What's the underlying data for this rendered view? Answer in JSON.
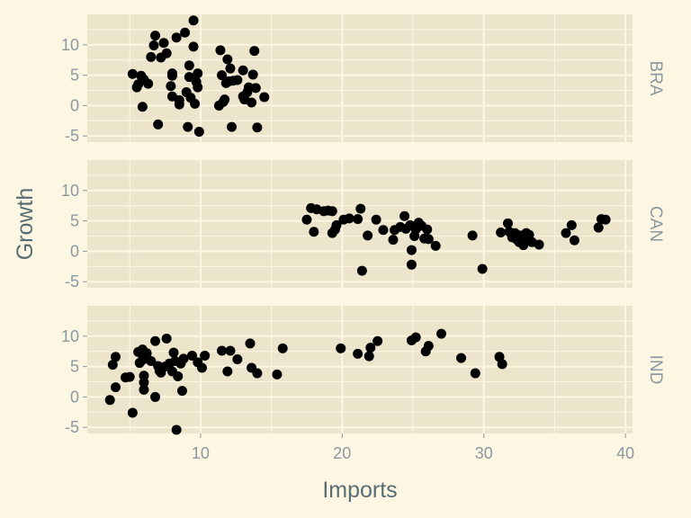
{
  "chart_data": {
    "type": "scatter",
    "xlabel": "Imports",
    "ylabel": "Growth",
    "xlim": [
      2,
      40.5
    ],
    "ylim": [
      -6,
      15
    ],
    "x_ticks": [
      10,
      20,
      30,
      40
    ],
    "y_ticks": [
      -5,
      0,
      5,
      10
    ],
    "colors": {
      "background": "#fdf6e3",
      "panel": "#ede5cb",
      "grid": "#fdf6e3",
      "point": "#000000",
      "text": "#8a9aa0",
      "title": "#586e75"
    },
    "panels": [
      {
        "label": "BRA",
        "points": [
          [
            5.2,
            5.2
          ],
          [
            5.6,
            3.5
          ],
          [
            5.5,
            3.0
          ],
          [
            5.8,
            4.9
          ],
          [
            6.0,
            4.3
          ],
          [
            6.3,
            3.6
          ],
          [
            5.9,
            -0.2
          ],
          [
            6.5,
            8.0
          ],
          [
            6.7,
            9.9
          ],
          [
            6.8,
            11.5
          ],
          [
            7.0,
            -3.1
          ],
          [
            7.2,
            7.9
          ],
          [
            7.4,
            10.3
          ],
          [
            7.6,
            8.6
          ],
          [
            7.9,
            3.2
          ],
          [
            8.0,
            4.9
          ],
          [
            8.0,
            5.3
          ],
          [
            8.0,
            1.5
          ],
          [
            8.3,
            11.2
          ],
          [
            8.5,
            0.9
          ],
          [
            8.5,
            0.2
          ],
          [
            8.9,
            12.0
          ],
          [
            9.0,
            2.2
          ],
          [
            9.1,
            -3.5
          ],
          [
            9.2,
            4.7
          ],
          [
            9.2,
            6.6
          ],
          [
            9.3,
            1.3
          ],
          [
            9.5,
            14.0
          ],
          [
            9.5,
            9.7
          ],
          [
            9.6,
            0.3
          ],
          [
            9.7,
            3.9
          ],
          [
            9.8,
            5.3
          ],
          [
            9.8,
            3.0
          ],
          [
            9.9,
            -4.3
          ],
          [
            11.3,
            0.0
          ],
          [
            11.4,
            9.1
          ],
          [
            11.5,
            5.0
          ],
          [
            11.6,
            0.6
          ],
          [
            11.7,
            1.0
          ],
          [
            11.8,
            3.7
          ],
          [
            11.9,
            7.6
          ],
          [
            12.0,
            4.0
          ],
          [
            12.1,
            6.1
          ],
          [
            12.2,
            -3.5
          ],
          [
            12.3,
            4.1
          ],
          [
            12.6,
            4.2
          ],
          [
            13.0,
            5.8
          ],
          [
            13.0,
            1.5
          ],
          [
            13.1,
            1.0
          ],
          [
            13.3,
            2.2
          ],
          [
            13.4,
            3.0
          ],
          [
            13.6,
            0.5
          ],
          [
            13.7,
            5.1
          ],
          [
            13.8,
            9.0
          ],
          [
            13.9,
            2.9
          ],
          [
            14.0,
            -3.6
          ],
          [
            14.5,
            1.4
          ]
        ]
      },
      {
        "label": "CAN",
        "points": [
          [
            17.5,
            5.2
          ],
          [
            17.8,
            7.1
          ],
          [
            18.0,
            3.2
          ],
          [
            18.2,
            6.9
          ],
          [
            18.7,
            6.6
          ],
          [
            19.0,
            6.7
          ],
          [
            19.3,
            3.0
          ],
          [
            19.3,
            6.6
          ],
          [
            19.5,
            3.6
          ],
          [
            19.6,
            4.3
          ],
          [
            20.1,
            5.2
          ],
          [
            20.5,
            5.4
          ],
          [
            21.1,
            5.3
          ],
          [
            21.3,
            7.0
          ],
          [
            21.4,
            -3.2
          ],
          [
            21.8,
            2.6
          ],
          [
            22.4,
            5.2
          ],
          [
            22.9,
            3.5
          ],
          [
            23.6,
            1.9
          ],
          [
            23.7,
            3.5
          ],
          [
            24.1,
            4.0
          ],
          [
            24.4,
            5.8
          ],
          [
            24.5,
            3.7
          ],
          [
            24.8,
            4.3
          ],
          [
            24.9,
            -2.2
          ],
          [
            24.9,
            0.2
          ],
          [
            25.1,
            2.5
          ],
          [
            25.2,
            3.6
          ],
          [
            25.4,
            4.7
          ],
          [
            25.6,
            4.2
          ],
          [
            25.8,
            2.1
          ],
          [
            26.0,
            3.6
          ],
          [
            26.1,
            2.0
          ],
          [
            26.6,
            0.9
          ],
          [
            29.2,
            2.6
          ],
          [
            29.9,
            -2.9
          ],
          [
            31.2,
            3.1
          ],
          [
            31.7,
            4.6
          ],
          [
            31.8,
            3.2
          ],
          [
            32.0,
            2.3
          ],
          [
            32.2,
            3.0
          ],
          [
            32.3,
            2.0
          ],
          [
            32.5,
            1.5
          ],
          [
            32.6,
            2.6
          ],
          [
            32.8,
            1.0
          ],
          [
            33.0,
            3.0
          ],
          [
            33.0,
            2.2
          ],
          [
            33.2,
            2.7
          ],
          [
            33.4,
            1.5
          ],
          [
            33.9,
            1.1
          ],
          [
            35.8,
            3.0
          ],
          [
            36.2,
            4.3
          ],
          [
            36.4,
            1.8
          ],
          [
            38.1,
            3.9
          ],
          [
            38.3,
            5.3
          ],
          [
            38.6,
            5.2
          ]
        ]
      },
      {
        "label": "IND",
        "points": [
          [
            3.6,
            -0.5
          ],
          [
            3.8,
            5.3
          ],
          [
            4.0,
            6.6
          ],
          [
            4.0,
            1.6
          ],
          [
            4.7,
            3.2
          ],
          [
            5.0,
            3.3
          ],
          [
            5.2,
            -2.6
          ],
          [
            5.6,
            7.4
          ],
          [
            5.7,
            5.6
          ],
          [
            5.9,
            7.8
          ],
          [
            5.9,
            6.1
          ],
          [
            6.0,
            3.5
          ],
          [
            6.0,
            2.4
          ],
          [
            6.0,
            1.2
          ],
          [
            6.2,
            7.2
          ],
          [
            6.5,
            5.9
          ],
          [
            6.8,
            0.0
          ],
          [
            6.8,
            9.2
          ],
          [
            7.0,
            5.1
          ],
          [
            7.1,
            4.3
          ],
          [
            7.2,
            4.0
          ],
          [
            7.5,
            5.0
          ],
          [
            7.6,
            9.6
          ],
          [
            7.8,
            5.5
          ],
          [
            8.0,
            4.2
          ],
          [
            8.1,
            7.3
          ],
          [
            8.2,
            5.9
          ],
          [
            8.4,
            3.4
          ],
          [
            8.3,
            -5.4
          ],
          [
            8.6,
            5.5
          ],
          [
            8.7,
            1.0
          ],
          [
            8.8,
            6.3
          ],
          [
            9.4,
            6.8
          ],
          [
            9.8,
            5.7
          ],
          [
            10.1,
            4.8
          ],
          [
            10.3,
            6.8
          ],
          [
            11.5,
            7.6
          ],
          [
            11.9,
            4.2
          ],
          [
            12.1,
            7.6
          ],
          [
            12.6,
            6.2
          ],
          [
            13.5,
            8.8
          ],
          [
            13.6,
            4.8
          ],
          [
            14.0,
            3.9
          ],
          [
            15.4,
            3.7
          ],
          [
            15.8,
            8.0
          ],
          [
            19.9,
            8.0
          ],
          [
            21.1,
            7.1
          ],
          [
            21.9,
            6.7
          ],
          [
            22.0,
            8.1
          ],
          [
            22.5,
            9.2
          ],
          [
            24.9,
            9.3
          ],
          [
            25.2,
            9.8
          ],
          [
            25.9,
            7.5
          ],
          [
            26.1,
            8.4
          ],
          [
            27.0,
            10.4
          ],
          [
            28.4,
            6.4
          ],
          [
            29.4,
            3.9
          ],
          [
            31.1,
            6.6
          ],
          [
            31.3,
            5.4
          ]
        ]
      }
    ]
  }
}
